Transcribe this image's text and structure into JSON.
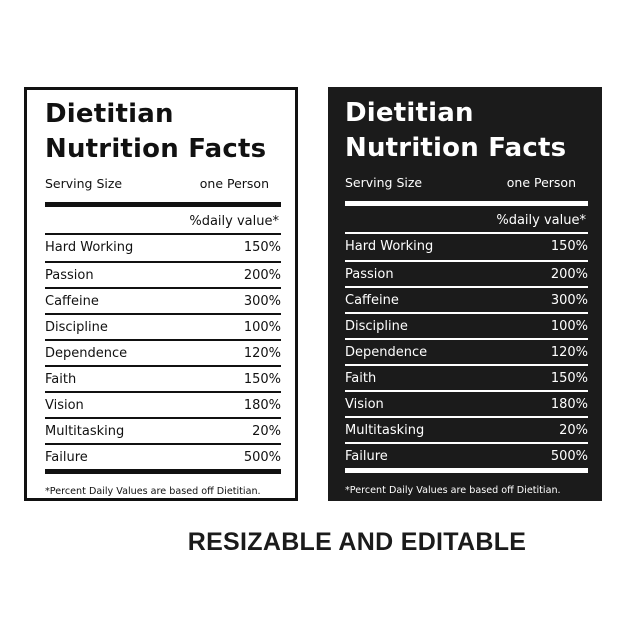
{
  "labels": [
    {
      "variant": "light",
      "title_line1": "Dietitian",
      "title_line2": "Nutrition Facts",
      "serving_label": "Serving Size",
      "serving_value": "one Person",
      "daily_value_header": "%daily value*",
      "rows": [
        {
          "name": "Hard Working",
          "value": "150%"
        },
        {
          "name": "Passion",
          "value": "200%"
        },
        {
          "name": "Caffeine",
          "value": "300%"
        },
        {
          "name": "Discipline",
          "value": "100%"
        },
        {
          "name": "Dependence",
          "value": "120%"
        },
        {
          "name": "Faith",
          "value": "150%"
        },
        {
          "name": "Vision",
          "value": "180%"
        },
        {
          "name": "Multitasking",
          "value": "20%"
        },
        {
          "name": "Failure",
          "value": "500%"
        }
      ],
      "footnote": "*Percent Daily Values are based off Dietitian."
    },
    {
      "variant": "dark",
      "title_line1": "Dietitian",
      "title_line2": "Nutrition Facts",
      "serving_label": "Serving Size",
      "serving_value": "one Person",
      "daily_value_header": "%daily value*",
      "rows": [
        {
          "name": "Hard Working",
          "value": "150%"
        },
        {
          "name": "Passion",
          "value": "200%"
        },
        {
          "name": "Caffeine",
          "value": "300%"
        },
        {
          "name": "Discipline",
          "value": "100%"
        },
        {
          "name": "Dependence",
          "value": "120%"
        },
        {
          "name": "Faith",
          "value": "150%"
        },
        {
          "name": "Vision",
          "value": "180%"
        },
        {
          "name": "Multitasking",
          "value": "20%"
        },
        {
          "name": "Failure",
          "value": "500%"
        }
      ],
      "footnote": "*Percent Daily Values are based off Dietitian."
    }
  ],
  "banner": "RESIZABLE AND EDITABLE",
  "colors": {
    "ink": "#111111",
    "dark_bg": "#1b1b1b",
    "light_bg": "#ffffff"
  }
}
